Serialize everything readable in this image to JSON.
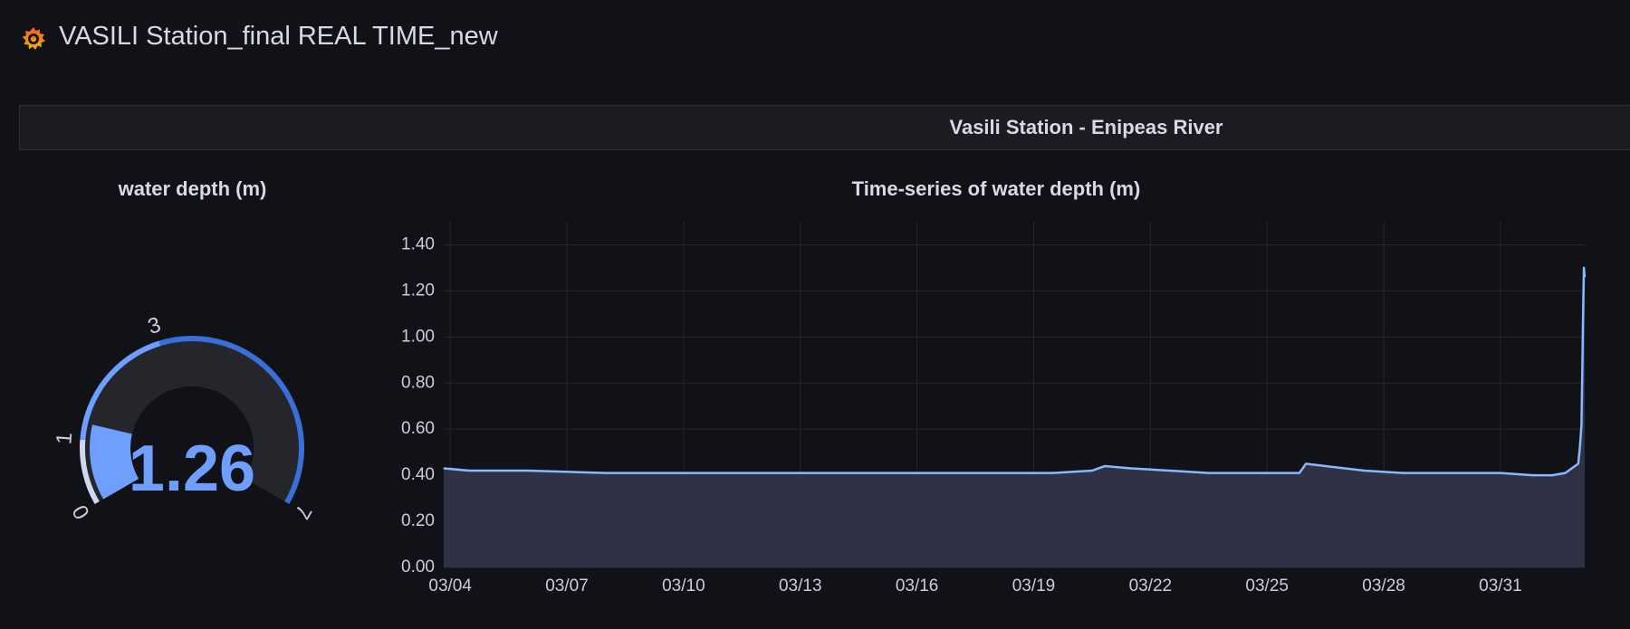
{
  "dashboard": {
    "title": "VASILI Station_final REAL TIME_new",
    "logo_icon": "grafana-logo-icon"
  },
  "row": {
    "title": "Vasili Station - Enipeas River"
  },
  "gauge": {
    "title": "water depth (m)",
    "value": 1.26,
    "value_text": "1.26",
    "min": 0,
    "max": 7,
    "thresholds": [
      0,
      1,
      3,
      7
    ],
    "threshold_labels": [
      "0",
      "1",
      "3",
      "7"
    ],
    "value_color": "#6e9fff",
    "threshold_colors": [
      "#cfd8ee",
      "#6e9fff",
      "#3a6fd6"
    ]
  },
  "timeseries": {
    "title": "Time-series of water depth (m)",
    "line_color": "#8ab8ff"
  },
  "chart_data": {
    "type": "area",
    "title": "Time-series of water depth (m)",
    "xlabel": "",
    "ylabel": "",
    "ylim": [
      0,
      1.5
    ],
    "xlim": [
      "03/03 20:00",
      "04/02 04:00"
    ],
    "yticks": [
      "0.00",
      "0.20",
      "0.40",
      "0.60",
      "0.80",
      "1.00",
      "1.20",
      "1.40"
    ],
    "xticks": [
      "03/04",
      "03/07",
      "03/10",
      "03/13",
      "03/16",
      "03/19",
      "03/22",
      "03/25",
      "03/28",
      "03/31"
    ],
    "grid": true,
    "series": [
      {
        "x": [
          "03/03 20:00",
          "03/04 12:00",
          "03/06 00:00",
          "03/08 00:00",
          "03/10 00:00",
          "03/12 00:00",
          "03/14 00:00",
          "03/16 00:00",
          "03/18 00:00",
          "03/19 12:00",
          "03/20 12:00",
          "03/20 20:00",
          "03/21 12:00",
          "03/22 12:00",
          "03/23 12:00",
          "03/25 00:00",
          "03/25 20:00",
          "03/26 00:00",
          "03/26 12:00",
          "03/27 12:00",
          "03/28 12:00",
          "03/30 00:00",
          "03/31 00:00",
          "03/31 20:00",
          "04/01 08:00",
          "04/01 16:00",
          "04/02 00:00",
          "04/02 01:00",
          "04/02 02:00",
          "04/02 02:30",
          "04/02 03:00",
          "04/02 03:30",
          "04/02 04:00"
        ],
        "values": [
          0.43,
          0.42,
          0.42,
          0.41,
          0.41,
          0.41,
          0.41,
          0.41,
          0.41,
          0.41,
          0.42,
          0.44,
          0.43,
          0.42,
          0.41,
          0.41,
          0.41,
          0.45,
          0.44,
          0.42,
          0.41,
          0.41,
          0.41,
          0.4,
          0.4,
          0.41,
          0.45,
          0.52,
          0.62,
          0.85,
          1.1,
          1.3,
          1.26
        ]
      }
    ]
  }
}
